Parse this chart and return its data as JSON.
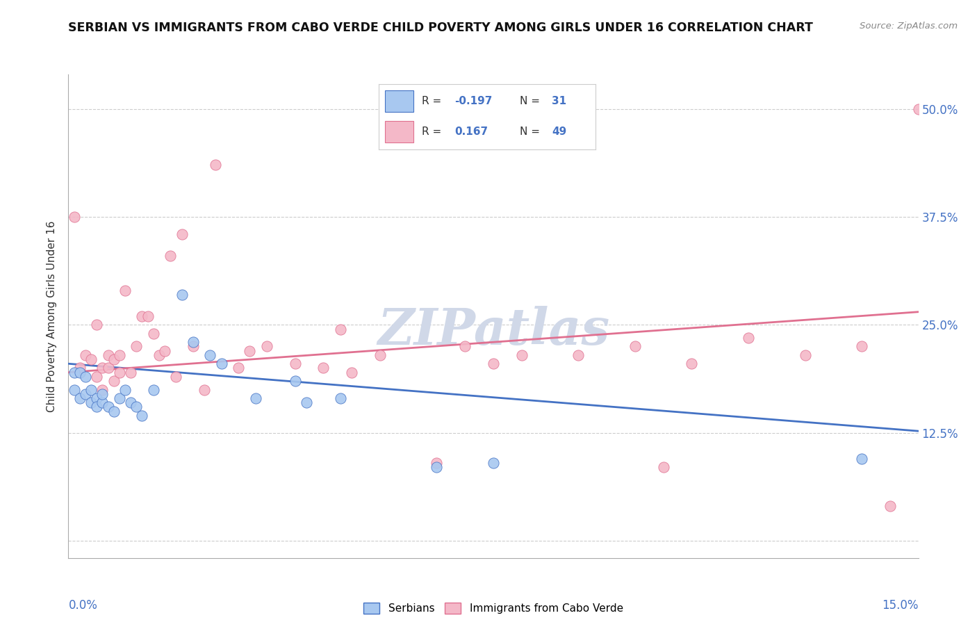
{
  "title": "SERBIAN VS IMMIGRANTS FROM CABO VERDE CHILD POVERTY AMONG GIRLS UNDER 16 CORRELATION CHART",
  "source": "Source: ZipAtlas.com",
  "ylabel": "Child Poverty Among Girls Under 16",
  "ytick_vals": [
    0.0,
    0.125,
    0.25,
    0.375,
    0.5
  ],
  "ytick_labels": [
    "",
    "12.5%",
    "25.0%",
    "37.5%",
    "50.0%"
  ],
  "xlim": [
    0.0,
    0.15
  ],
  "ylim": [
    -0.02,
    0.54
  ],
  "legend_r_serbian": "-0.197",
  "legend_n_serbian": "31",
  "legend_r_cabo": "0.167",
  "legend_n_cabo": "49",
  "serbian_color": "#a8c8f0",
  "cabo_color": "#f4b8c8",
  "serbian_line_color": "#4472c4",
  "cabo_line_color": "#e07090",
  "tick_color": "#4472c4",
  "serbian_points_x": [
    0.001,
    0.001,
    0.002,
    0.002,
    0.003,
    0.003,
    0.004,
    0.004,
    0.005,
    0.005,
    0.006,
    0.006,
    0.007,
    0.008,
    0.009,
    0.01,
    0.011,
    0.012,
    0.013,
    0.015,
    0.02,
    0.022,
    0.025,
    0.027,
    0.033,
    0.04,
    0.042,
    0.048,
    0.065,
    0.075,
    0.14
  ],
  "serbian_points_y": [
    0.195,
    0.175,
    0.195,
    0.165,
    0.19,
    0.17,
    0.175,
    0.16,
    0.165,
    0.155,
    0.16,
    0.17,
    0.155,
    0.15,
    0.165,
    0.175,
    0.16,
    0.155,
    0.145,
    0.175,
    0.285,
    0.23,
    0.215,
    0.205,
    0.165,
    0.185,
    0.16,
    0.165,
    0.085,
    0.09,
    0.095
  ],
  "cabo_points_x": [
    0.001,
    0.002,
    0.003,
    0.004,
    0.005,
    0.005,
    0.006,
    0.006,
    0.007,
    0.007,
    0.008,
    0.008,
    0.009,
    0.009,
    0.01,
    0.011,
    0.012,
    0.013,
    0.014,
    0.015,
    0.016,
    0.017,
    0.018,
    0.019,
    0.02,
    0.022,
    0.024,
    0.026,
    0.03,
    0.032,
    0.035,
    0.04,
    0.045,
    0.048,
    0.05,
    0.055,
    0.065,
    0.07,
    0.075,
    0.08,
    0.09,
    0.1,
    0.105,
    0.11,
    0.12,
    0.13,
    0.14,
    0.145,
    0.15
  ],
  "cabo_points_y": [
    0.375,
    0.2,
    0.215,
    0.21,
    0.25,
    0.19,
    0.2,
    0.175,
    0.2,
    0.215,
    0.21,
    0.185,
    0.215,
    0.195,
    0.29,
    0.195,
    0.225,
    0.26,
    0.26,
    0.24,
    0.215,
    0.22,
    0.33,
    0.19,
    0.355,
    0.225,
    0.175,
    0.435,
    0.2,
    0.22,
    0.225,
    0.205,
    0.2,
    0.245,
    0.195,
    0.215,
    0.09,
    0.225,
    0.205,
    0.215,
    0.215,
    0.225,
    0.085,
    0.205,
    0.235,
    0.215,
    0.225,
    0.04,
    0.5
  ],
  "watermark": "ZIPatlas",
  "watermark_color": "#d0d8e8"
}
